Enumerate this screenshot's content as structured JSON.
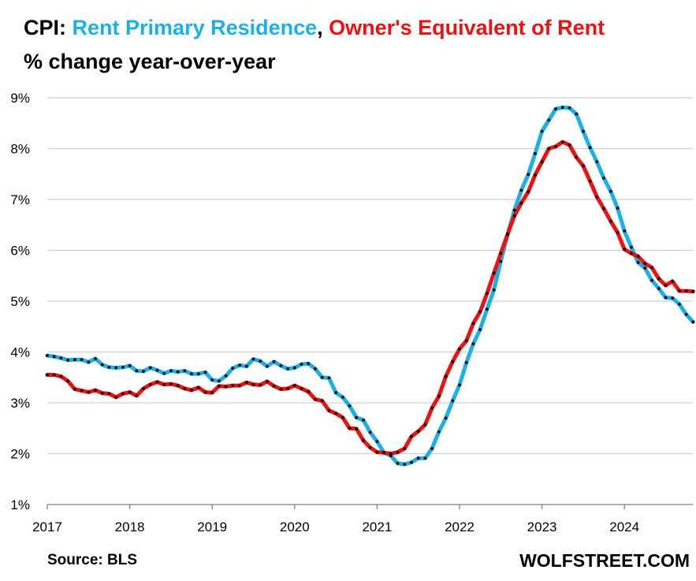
{
  "header": {
    "prefix": "CPI: ",
    "series1_label": "Rent Primary Residence",
    "separator": ",",
    "series2_label": " Owner's Equivalent of Rent",
    "subtitle": "% change year-over-year"
  },
  "footer": {
    "source": "Source: BLS",
    "brand": "WOLFSTREET.COM"
  },
  "colors": {
    "rent": "#1CB0E8",
    "oer": "#EE1111",
    "markers": "#000000",
    "grid": "#D0D0D0",
    "axis": "#7F7F7F"
  },
  "chart_data": {
    "type": "line",
    "xlabel": "",
    "ylabel": "",
    "xlim": [
      2017,
      2024.83
    ],
    "ylim": [
      1,
      9
    ],
    "x_ticks": [
      "2017",
      "2018",
      "2019",
      "2020",
      "2021",
      "2022",
      "2023",
      "2024"
    ],
    "y_ticks": [
      "1%",
      "2%",
      "3%",
      "4%",
      "5%",
      "6%",
      "7%",
      "8%",
      "9%"
    ],
    "grid": true,
    "x_start": "2017-01",
    "x_end": "2024-09",
    "series": [
      {
        "name": "Rent Primary Residence",
        "color": "#1CB0E8",
        "values": [
          3.93,
          3.91,
          3.88,
          3.84,
          3.85,
          3.85,
          3.8,
          3.87,
          3.75,
          3.7,
          3.69,
          3.7,
          3.73,
          3.63,
          3.62,
          3.69,
          3.64,
          3.58,
          3.63,
          3.61,
          3.63,
          3.57,
          3.57,
          3.6,
          3.45,
          3.43,
          3.53,
          3.68,
          3.74,
          3.72,
          3.86,
          3.82,
          3.72,
          3.81,
          3.73,
          3.67,
          3.69,
          3.76,
          3.77,
          3.67,
          3.5,
          3.49,
          3.2,
          3.11,
          2.94,
          2.71,
          2.66,
          2.42,
          2.24,
          2.02,
          1.96,
          1.81,
          1.79,
          1.83,
          1.91,
          1.91,
          2.1,
          2.43,
          2.7,
          3.04,
          3.35,
          3.79,
          4.16,
          4.44,
          4.84,
          5.22,
          5.78,
          6.31,
          6.79,
          7.18,
          7.49,
          7.9,
          8.34,
          8.56,
          8.78,
          8.81,
          8.8,
          8.68,
          8.34,
          8.02,
          7.74,
          7.42,
          7.16,
          6.83,
          6.38,
          6.06,
          5.76,
          5.65,
          5.41,
          5.25,
          5.07,
          5.06,
          4.94,
          4.74,
          4.59
        ]
      },
      {
        "name": "Owner's Equivalent of Rent",
        "color": "#EE1111",
        "values": [
          3.55,
          3.55,
          3.52,
          3.43,
          3.27,
          3.24,
          3.21,
          3.25,
          3.19,
          3.18,
          3.11,
          3.18,
          3.21,
          3.14,
          3.28,
          3.36,
          3.41,
          3.36,
          3.37,
          3.34,
          3.28,
          3.25,
          3.3,
          3.21,
          3.2,
          3.33,
          3.32,
          3.34,
          3.34,
          3.4,
          3.36,
          3.35,
          3.42,
          3.33,
          3.27,
          3.28,
          3.34,
          3.28,
          3.22,
          3.07,
          3.04,
          2.85,
          2.79,
          2.71,
          2.5,
          2.49,
          2.26,
          2.12,
          2.03,
          2.02,
          2.0,
          2.03,
          2.1,
          2.34,
          2.44,
          2.57,
          2.9,
          3.13,
          3.52,
          3.81,
          4.06,
          4.22,
          4.56,
          4.79,
          5.15,
          5.55,
          5.94,
          6.32,
          6.68,
          6.93,
          7.15,
          7.48,
          7.74,
          8.0,
          8.04,
          8.13,
          8.07,
          7.83,
          7.66,
          7.36,
          7.05,
          6.82,
          6.57,
          6.35,
          6.02,
          5.94,
          5.88,
          5.74,
          5.66,
          5.44,
          5.31,
          5.39,
          5.2,
          5.2,
          5.19
        ]
      }
    ]
  }
}
